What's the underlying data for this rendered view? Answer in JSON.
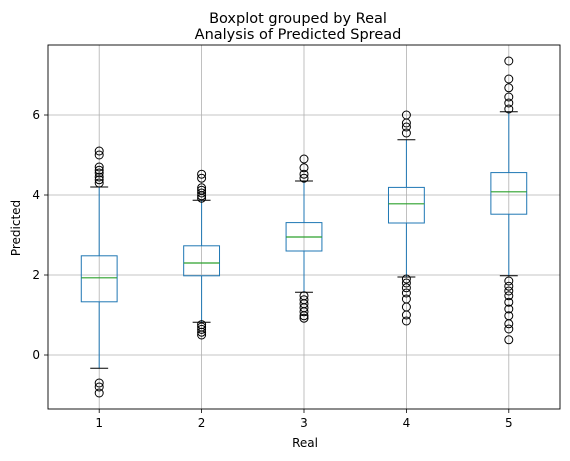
{
  "chart_data": {
    "type": "boxplot",
    "suptitle": "Boxplot grouped by Real",
    "title": "Analysis of Predicted Spread",
    "xlabel": "Real",
    "ylabel": "Predicted",
    "ylim": [
      -1.35,
      7.75
    ],
    "yticks": [
      0,
      2,
      4,
      6
    ],
    "grid": true,
    "colors": {
      "box": "#1f77b4",
      "median": "#2ca02c",
      "grid": "#b0b0b0",
      "outlier": "#000000"
    },
    "categories": [
      "1",
      "2",
      "3",
      "4",
      "5"
    ],
    "boxes": [
      {
        "category": "1",
        "q1": 1.33,
        "median": 1.93,
        "q3": 2.48,
        "whisker_low": -0.33,
        "whisker_high": 4.2,
        "outliers": [
          -0.95,
          -0.8,
          -0.7,
          4.3,
          4.38,
          4.45,
          4.55,
          4.62,
          4.7,
          5.0,
          5.1
        ]
      },
      {
        "category": "2",
        "q1": 1.98,
        "median": 2.3,
        "q3": 2.73,
        "whisker_low": 0.82,
        "whisker_high": 3.87,
        "outliers": [
          0.5,
          0.57,
          0.64,
          0.7,
          0.76,
          3.92,
          3.98,
          4.05,
          4.12,
          4.18,
          4.42,
          4.52
        ]
      },
      {
        "category": "3",
        "q1": 2.6,
        "median": 2.95,
        "q3": 3.31,
        "whisker_low": 1.57,
        "whisker_high": 4.35,
        "outliers": [
          0.92,
          0.98,
          1.08,
          1.18,
          1.28,
          1.38,
          1.48,
          4.42,
          4.52,
          4.68,
          4.9
        ]
      },
      {
        "category": "4",
        "q1": 3.3,
        "median": 3.78,
        "q3": 4.19,
        "whisker_low": 1.95,
        "whisker_high": 5.38,
        "outliers": [
          0.85,
          1.0,
          1.2,
          1.4,
          1.55,
          1.68,
          1.8,
          1.9,
          5.55,
          5.7,
          5.8,
          6.0
        ]
      },
      {
        "category": "5",
        "q1": 3.52,
        "median": 4.08,
        "q3": 4.56,
        "whisker_low": 1.98,
        "whisker_high": 6.08,
        "outliers": [
          0.38,
          0.65,
          0.78,
          0.98,
          1.15,
          1.32,
          1.48,
          1.6,
          1.72,
          1.85,
          6.15,
          6.3,
          6.45,
          6.68,
          6.9,
          7.35
        ]
      }
    ]
  }
}
